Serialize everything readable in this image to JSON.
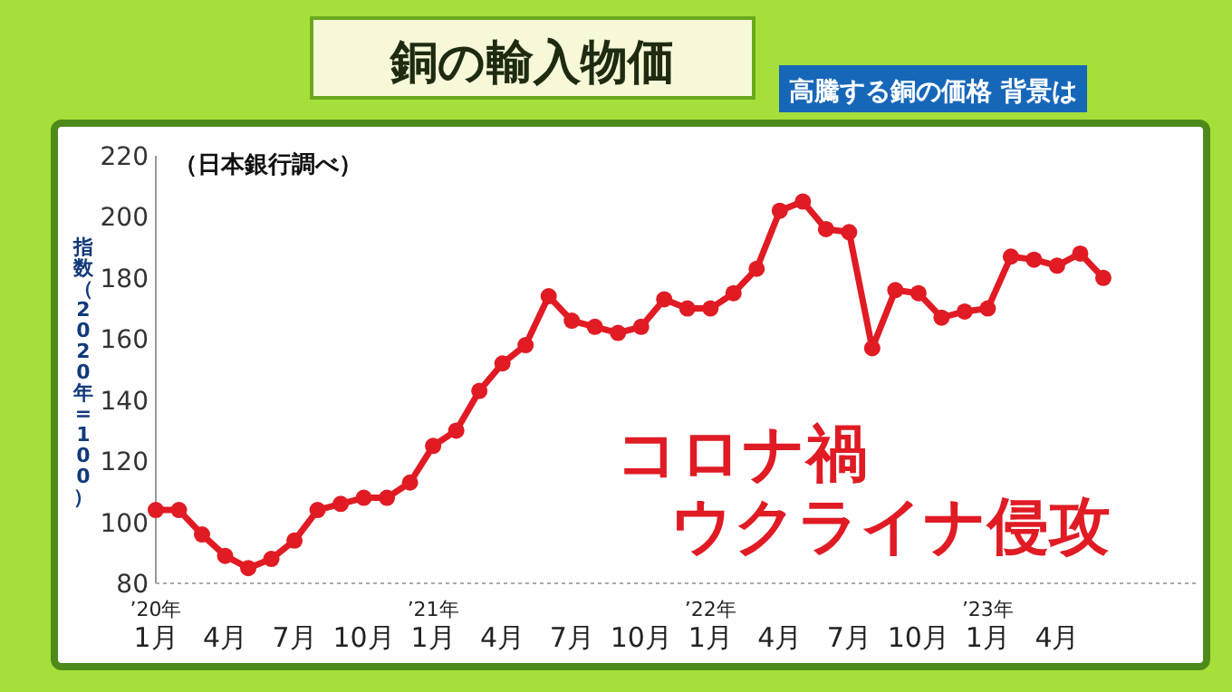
{
  "chart_data": {
    "type": "line",
    "title": "銅の輸入物価",
    "subtitle": "高騰する銅の価格 背景は",
    "ylabel": "指数（2020年=100）",
    "annotations": [
      "（日本銀行調べ）",
      "コロナ禍",
      "ウクライナ侵攻"
    ],
    "x": [
      "2020-01",
      "2020-02",
      "2020-03",
      "2020-04",
      "2020-05",
      "2020-06",
      "2020-07",
      "2020-08",
      "2020-09",
      "2020-10",
      "2020-11",
      "2020-12",
      "2021-01",
      "2021-02",
      "2021-03",
      "2021-04",
      "2021-05",
      "2021-06",
      "2021-07",
      "2021-08",
      "2021-09",
      "2021-10",
      "2021-11",
      "2021-12",
      "2022-01",
      "2022-02",
      "2022-03",
      "2022-04",
      "2022-05",
      "2022-06",
      "2022-07",
      "2022-08",
      "2022-09",
      "2022-10",
      "2022-11",
      "2022-12",
      "2023-01",
      "2023-02",
      "2023-03",
      "2023-04",
      "2023-05",
      "2023-06"
    ],
    "series": [
      {
        "color": "#e01b24",
        "values": [
          104,
          104,
          96,
          89,
          85,
          88,
          94,
          104,
          106,
          108,
          108,
          113,
          125,
          130,
          143,
          152,
          158,
          174,
          166,
          164,
          162,
          164,
          173,
          170,
          170,
          175,
          183,
          202,
          205,
          196,
          195,
          157,
          176,
          175,
          167,
          169,
          170,
          187,
          186,
          184,
          188,
          180
        ]
      }
    ],
    "xlim": [
      "2020-01",
      "2023-10"
    ],
    "xticks": [
      {
        "value": "2020-01",
        "label": "’20年\n1月"
      },
      {
        "value": "2020-04",
        "label": "4月"
      },
      {
        "value": "2020-07",
        "label": "7月"
      },
      {
        "value": "2020-10",
        "label": "10月"
      },
      {
        "value": "2021-01",
        "label": "’21年\n1月"
      },
      {
        "value": "2021-04",
        "label": "4月"
      },
      {
        "value": "2021-07",
        "label": "7月"
      },
      {
        "value": "2021-10",
        "label": "10月"
      },
      {
        "value": "2022-01",
        "label": "’22年\n1月"
      },
      {
        "value": "2022-04",
        "label": "4月"
      },
      {
        "value": "2022-07",
        "label": "7月"
      },
      {
        "value": "2022-10",
        "label": "10月"
      },
      {
        "value": "2023-01",
        "label": "’23年\n1月"
      },
      {
        "value": "2023-04",
        "label": "4月"
      }
    ],
    "ylim": [
      80,
      220
    ],
    "yticks": [
      80,
      100,
      120,
      140,
      160,
      180,
      200,
      220
    ],
    "marker": "circle",
    "line_style": "solid"
  }
}
